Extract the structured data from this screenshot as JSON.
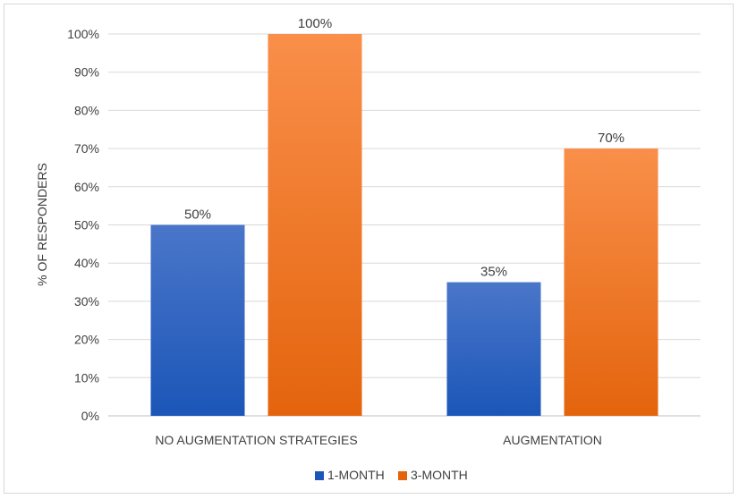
{
  "chart_data": {
    "type": "bar",
    "categories": [
      "NO AUGMENTATION STRATEGIES",
      "AUGMENTATION"
    ],
    "series": [
      {
        "name": "1-MONTH",
        "values": [
          50,
          35
        ],
        "labels": [
          "50%",
          "35%"
        ],
        "color_top": "#4a76c9",
        "color_bottom": "#1b56b8"
      },
      {
        "name": "3-MONTH",
        "values": [
          100,
          70
        ],
        "labels": [
          "100%",
          "70%"
        ],
        "color_top": "#f98f4a",
        "color_bottom": "#e4640d"
      }
    ],
    "ylabel": "% OF RESPONDERS",
    "ylim": [
      0,
      100
    ],
    "yticks": [
      {
        "value": 0,
        "label": "0%"
      },
      {
        "value": 10,
        "label": "10%"
      },
      {
        "value": 20,
        "label": "20%"
      },
      {
        "value": 30,
        "label": "30%"
      },
      {
        "value": 40,
        "label": "40%"
      },
      {
        "value": 50,
        "label": "50%"
      },
      {
        "value": 60,
        "label": "60%"
      },
      {
        "value": 70,
        "label": "70%"
      },
      {
        "value": 80,
        "label": "80%"
      },
      {
        "value": 90,
        "label": "90%"
      },
      {
        "value": 100,
        "label": "100%"
      }
    ],
    "grid": true,
    "legend_position": "bottom"
  }
}
